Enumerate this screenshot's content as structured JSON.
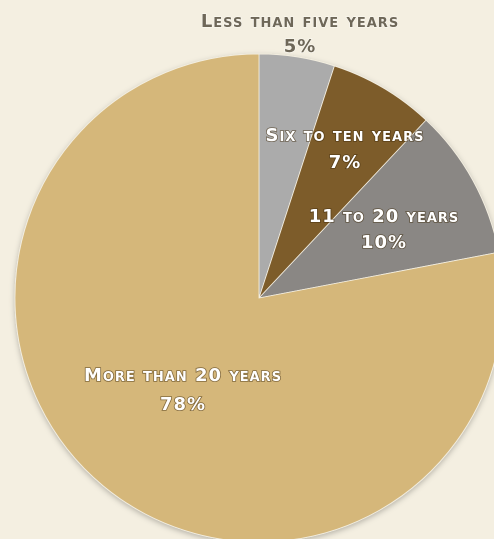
{
  "chart_data": {
    "type": "pie",
    "slices": [
      {
        "label": "Less than five years",
        "value": 5,
        "value_label": "5%",
        "color": "#ababab"
      },
      {
        "label": "Six to ten years",
        "value": 7,
        "value_label": "7%",
        "color": "#7d5b2b"
      },
      {
        "label": "11 to 20 years",
        "value": 10,
        "value_label": "10%",
        "color": "#8a8784"
      },
      {
        "label": "More than 20 years",
        "value": 78,
        "value_label": "78%",
        "color": "#d5b77a"
      }
    ],
    "start_angle_deg": 0,
    "direction": "clockwise",
    "legend": "none",
    "label_colors": {
      "light": "#ffffff",
      "dark": "#6e6758"
    }
  }
}
